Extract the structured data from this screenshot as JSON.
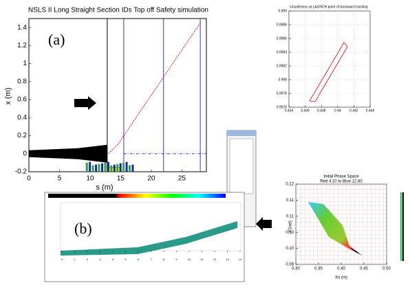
{
  "panel_a": {
    "title": "NSLS II Long Straight Section IDs Top off Safety simulation",
    "label": "(a)",
    "x_label": "s (m)",
    "y_label": "x (m)",
    "xlim": [
      0,
      29
    ],
    "ylim": [
      -0.2,
      1.5
    ],
    "xticks": [
      0,
      5,
      10,
      15,
      20,
      25
    ],
    "yticks": [
      -0.2,
      0,
      0.2,
      0.4,
      0.6,
      0.8,
      1,
      1.2,
      1.4
    ],
    "trajectory": {
      "x": [
        13,
        14.5,
        15.5,
        22,
        28
      ],
      "values": [
        0,
        0.1,
        0.2,
        0.85,
        1.45
      ]
    }
  },
  "panel_top": {
    "title": "Unsafeness at LAUNCH point of backward tracking",
    "xlim": [
      0.434,
      0.444
    ],
    "ylim": [
      0.9976,
      0.999
    ],
    "xticks": [
      0.434,
      0.436,
      0.438,
      0.44,
      0.442,
      0.444
    ],
    "yticks": [
      0.9976,
      0.9978,
      0.998,
      0.9982,
      0.9984,
      0.9986,
      0.9988,
      0.999
    ]
  },
  "panel_b": {
    "label": "(b)",
    "xticks": [
      0,
      1,
      2,
      3,
      4,
      5,
      6,
      7,
      8,
      9,
      10,
      11,
      12,
      13,
      14
    ]
  },
  "panel_phase": {
    "title": "Initial Phase Space",
    "subtitle": "Red 4.10  to Blue 12.80",
    "x_label": "Xo (m)",
    "y_label": "X'(rad)",
    "xlim": [
      0.3,
      0.5
    ],
    "ylim": [
      0.09,
      0.12
    ],
    "xticks": [
      {
        "value": 0.3,
        "label": "0.30"
      },
      {
        "value": 0.35,
        "label": "0.35"
      },
      {
        "value": 0.4,
        "label": "0.40"
      },
      {
        "value": 0.45,
        "label": "0.45"
      },
      {
        "value": 0.5,
        "label": "0.50"
      }
    ],
    "yticks": [
      {
        "value": 0.12,
        "label": "0.12"
      },
      {
        "value": 0.114,
        "label": "0.11"
      },
      {
        "value": 0.108,
        "label": "0.11"
      },
      {
        "value": 0.102,
        "label": "0.10"
      },
      {
        "value": 0.096,
        "label": "0.10"
      },
      {
        "value": 0.09,
        "label": "0.09"
      }
    ]
  }
}
